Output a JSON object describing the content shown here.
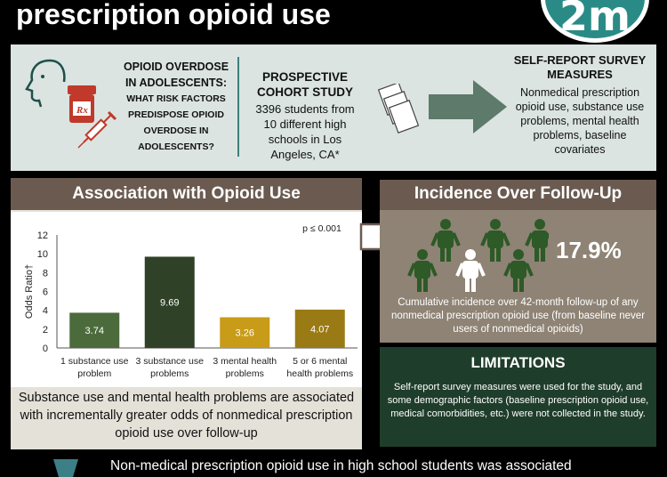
{
  "header": {
    "title": "prescription opioid use",
    "logo_text": "2m",
    "colors": {
      "background": "#000000",
      "accent": "#2a8b86"
    }
  },
  "question": {
    "line1": "OPIOID OVERDOSE",
    "line2": "IN ADOLESCENTS:",
    "line3": "WHAT RISK FACTORS",
    "line4": "PREDISPOSE OPIOID",
    "line5": "OVERDOSE IN",
    "line6": "ADOLESCENTS?",
    "icons": [
      "head-profile-icon",
      "pill-bottle-icon",
      "syringe-icon"
    ]
  },
  "study": {
    "title": "PROSPECTIVE COHORT STUDY",
    "body": "3396 students from 10 different high schools in Los Angeles, CA*"
  },
  "measures": {
    "title": "SELF-REPORT SURVEY MEASURES",
    "body": "Nonmedical prescription opioid use, substance use problems, mental health problems, baseline covariates",
    "icons": [
      "document-stack-icon",
      "arrow-right-icon"
    ]
  },
  "association": {
    "title": "Association with Opioid Use",
    "conclusion": "Substance use and mental health problems are associated with incrementally greater odds of nonmedical prescription opioid use over follow-up"
  },
  "chart_data": {
    "type": "bar",
    "title": "",
    "xlabel": "",
    "ylabel": "Odds Ratio†",
    "ylim": [
      0,
      12
    ],
    "yticks": [
      0,
      2,
      4,
      6,
      8,
      10,
      12
    ],
    "grid": false,
    "annotation": "p ≤ 0.001",
    "categories": [
      "1 substance use problem",
      "3 substance use problems",
      "3 mental health problems",
      "5 or 6 mental health problems"
    ],
    "category_lines": [
      [
        "1 substance use",
        "problem"
      ],
      [
        "3 substance use",
        "problems"
      ],
      [
        "3 mental health",
        "problems"
      ],
      [
        "5 or 6 mental",
        "health problems"
      ]
    ],
    "values": [
      3.74,
      9.69,
      3.26,
      4.07
    ],
    "value_labels": [
      "3.74",
      "9.69",
      "3.26",
      "4.07"
    ],
    "bar_colors": [
      "#4c6b3c",
      "#2f4228",
      "#c89c18",
      "#9a7a14"
    ]
  },
  "incidence": {
    "title": "Incidence Over Follow-Up",
    "percent": "17.9%",
    "description": "Cumulative incidence over 42-month follow-up of any nonmedical prescription opioid use  (from baseline never users of nonmedical opioids)",
    "icons": [
      "person-icon"
    ],
    "colors": {
      "person": "#2d5a27",
      "highlight_person": "#ffffff"
    }
  },
  "limitations": {
    "title": "LIMITATIONS",
    "body": "Self-report survey measures were used for the study, and some demographic factors (baseline prescription opioid use, medical comorbidities, etc.) were not collected in the study."
  },
  "footer": {
    "text": "Non-medical prescription opioid use in high school students was associated"
  }
}
